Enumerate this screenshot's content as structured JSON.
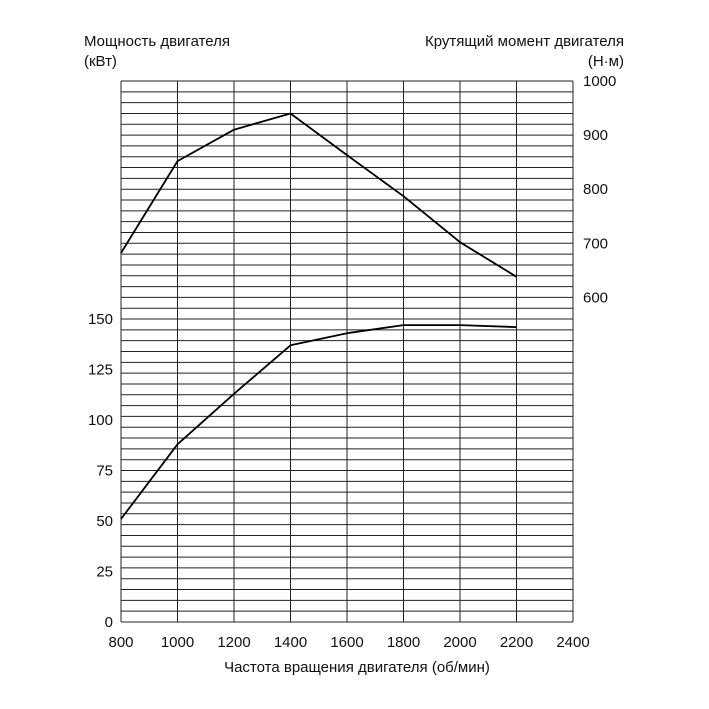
{
  "chart_data": {
    "type": "line",
    "left_axis_title": [
      "Мощность двигателя",
      "(кВт)"
    ],
    "right_axis_title": [
      "Крутящий момент двигателя",
      "(Н·м)"
    ],
    "xlabel": "Частота вращения двигателя (об/мин)",
    "x_ticks": [
      800,
      1000,
      1200,
      1400,
      1600,
      1800,
      2000,
      2200,
      2400
    ],
    "xlim": [
      800,
      2400
    ],
    "left_ticks": [
      0,
      25,
      50,
      75,
      100,
      125,
      150
    ],
    "left_range": [
      0,
      150
    ],
    "right_ticks": [
      600,
      700,
      800,
      900,
      1000
    ],
    "right_range": [
      600,
      1000
    ],
    "grid": true,
    "series": [
      {
        "axis": "right",
        "x": [
          800,
          1000,
          1200,
          1400,
          1600,
          1800,
          2000,
          2200
        ],
        "values": [
          682,
          852,
          910,
          940,
          863,
          787,
          702,
          638
        ]
      },
      {
        "axis": "left",
        "x": [
          800,
          1000,
          1200,
          1400,
          1600,
          1800,
          2000,
          2200
        ],
        "values": [
          51,
          88,
          113,
          137,
          143,
          147,
          147,
          146
        ]
      }
    ]
  }
}
